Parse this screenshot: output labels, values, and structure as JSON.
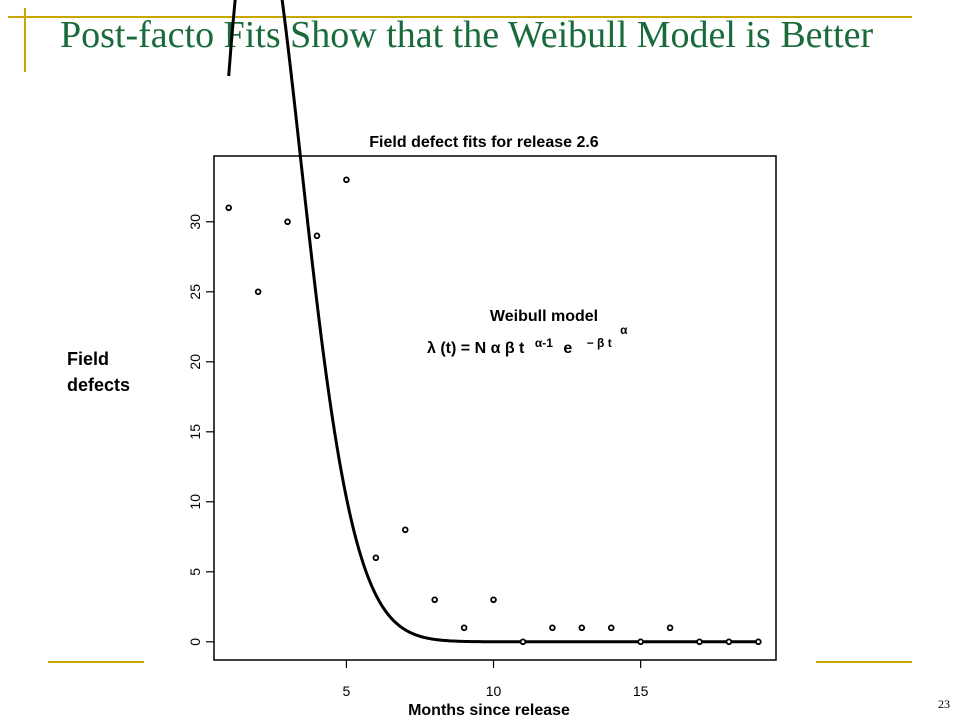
{
  "slide": {
    "title": "Post-facto Fits Show that the Weibull Model is Better",
    "page_number": "23",
    "accent_color": "#c8a600",
    "title_color": "#1a6b3c"
  },
  "chart_data": {
    "type": "scatter",
    "title": "Field defect fits for release 2.6",
    "xlabel": "Months since release",
    "ylabel_lines": [
      "Field",
      "defects"
    ],
    "xlim": [
      0.5,
      19.6
    ],
    "ylim": [
      -1.3,
      34.7
    ],
    "xticks": [
      5,
      10,
      15
    ],
    "yticks": [
      0,
      5,
      10,
      15,
      20,
      25,
      30
    ],
    "series": [
      {
        "kind": "points",
        "x": [
          1,
          2,
          3,
          4,
          5,
          6,
          7,
          8,
          9,
          10,
          11,
          12,
          13,
          14,
          15,
          16,
          17,
          18,
          19
        ],
        "y": [
          31,
          25,
          30,
          29,
          33,
          6,
          8,
          3,
          1,
          3,
          0,
          1,
          1,
          1,
          0,
          1,
          0,
          0,
          0
        ]
      },
      {
        "kind": "line",
        "model": "weibull",
        "params": {
          "N": 180,
          "alpha": 1.95,
          "beta": 0.1313
        },
        "x_start": 1,
        "x_end": 19
      }
    ],
    "annotation": {
      "line1": "Weibull model",
      "line2_main": "λ (t) = N α β t",
      "sup1": "α-1",
      "e_char": "e",
      "exp_text": "− β t",
      "exp_sup": "α"
    }
  }
}
